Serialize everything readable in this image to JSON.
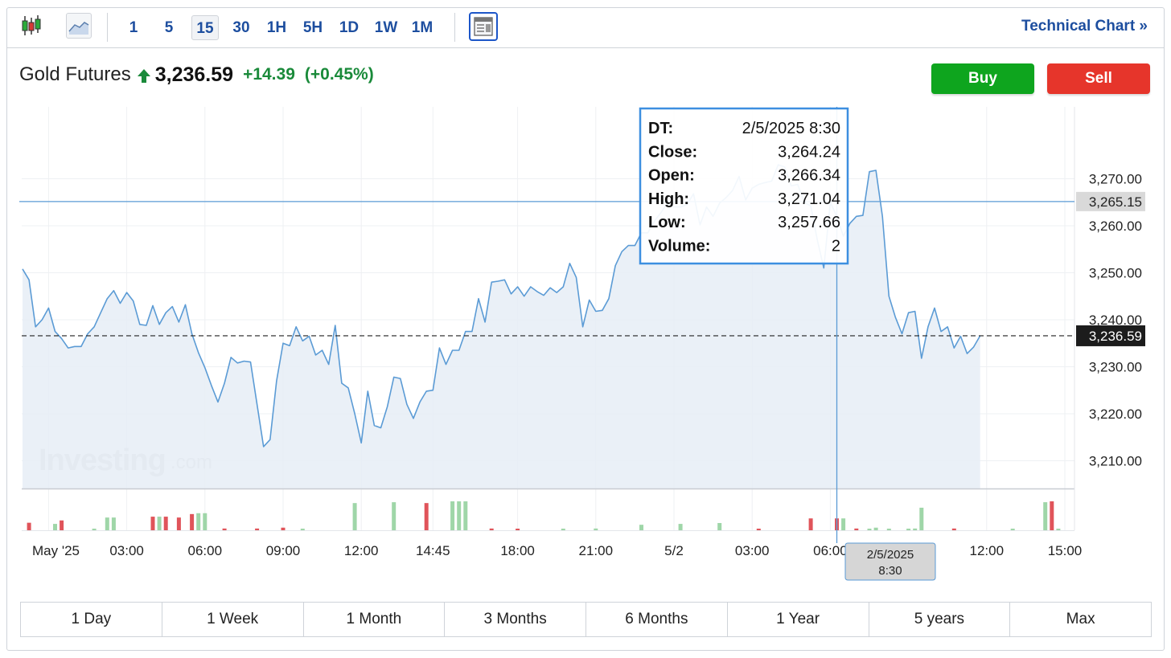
{
  "toolbar": {
    "icons": [
      "candlestick-icon",
      "area-chart-icon",
      "layout-icon"
    ],
    "timeframes": [
      "1",
      "5",
      "15",
      "30",
      "1H",
      "5H",
      "1D",
      "1W",
      "1M"
    ],
    "active_timeframe": "15",
    "technical_link": "Technical Chart »"
  },
  "instrument": {
    "name": "Gold Futures",
    "price": "3,236.59",
    "change": "+14.39",
    "change_pct": "(+0.45%)",
    "direction": "up"
  },
  "actions": {
    "buy": "Buy",
    "sell": "Sell"
  },
  "tooltip": {
    "rows": [
      {
        "label": "DT:",
        "value": "2/5/2025 8:30"
      },
      {
        "label": "Close:",
        "value": "3,264.24"
      },
      {
        "label": "Open:",
        "value": "3,266.34"
      },
      {
        "label": "High:",
        "value": "3,271.04"
      },
      {
        "label": "Low:",
        "value": "3,257.66"
      },
      {
        "label": "Volume:",
        "value": "2"
      }
    ]
  },
  "crosshair": {
    "price_label": "3,265.15",
    "time_label_line1": "2/5/2025",
    "time_label_line2": "8:30"
  },
  "last_price_label": "3,236.59",
  "watermark": {
    "brand": "Investing",
    "suffix": ".com"
  },
  "ranges": [
    "1 Day",
    "1 Week",
    "1 Month",
    "3 Months",
    "6 Months",
    "1 Year",
    "5 years",
    "Max"
  ],
  "colors": {
    "line": "#5b9bd5",
    "area": "#e6edf6",
    "up_volume": "#9fd6a8",
    "down_volume": "#e0545a",
    "positive": "#1a8a3a",
    "link": "#1d4e9f",
    "buy": "#0ea51e",
    "sell": "#e6352b"
  },
  "chart_data": {
    "type": "area",
    "y_ticks": [
      "3,270.00",
      "3,260.00",
      "3,250.00",
      "3,240.00",
      "3,230.00",
      "3,220.00",
      "3,210.00"
    ],
    "y_tick_values": [
      3270,
      3260,
      3250,
      3240,
      3230,
      3220,
      3210
    ],
    "ylim": [
      3204.1,
      3285.3
    ],
    "x_ticks": [
      "May '25",
      "03:00",
      "06:00",
      "09:00",
      "12:00",
      "14:45",
      "18:00",
      "21:00",
      "5/2",
      "03:00",
      "06:00",
      "12:00",
      "15:00"
    ],
    "x_tick_index": [
      4,
      16,
      28,
      40,
      52,
      63,
      76,
      88,
      100,
      112,
      124,
      148,
      160
    ],
    "close_values": [
      3250.8,
      3248.5,
      3238.5,
      3240.0,
      3242.5,
      3237.5,
      3236.0,
      3234.0,
      3234.3,
      3234.3,
      3237.0,
      3238.5,
      3241.5,
      3244.5,
      3246.2,
      3243.5,
      3245.8,
      3244.0,
      3239.0,
      3238.8,
      3243.0,
      3239.0,
      3241.5,
      3242.8,
      3239.5,
      3243.2,
      3237.0,
      3233.0,
      3229.8,
      3226.0,
      3222.5,
      3226.5,
      3232.0,
      3230.8,
      3231.2,
      3231.0,
      3222.0,
      3213.0,
      3214.5,
      3227.0,
      3235.0,
      3234.5,
      3238.5,
      3235.5,
      3236.5,
      3232.5,
      3233.5,
      3230.5,
      3238.8,
      3226.5,
      3225.5,
      3220.0,
      3213.8,
      3224.8,
      3217.5,
      3217.0,
      3221.5,
      3227.8,
      3227.5,
      3222.0,
      3219.0,
      3222.5,
      3224.8,
      3225.0,
      3234.0,
      3230.5,
      3233.5,
      3233.5,
      3237.5,
      3237.5,
      3244.5,
      3239.5,
      3248.0,
      3248.2,
      3248.5,
      3245.5,
      3247.0,
      3245.0,
      3247.0,
      3246.0,
      3245.2,
      3246.8,
      3245.8,
      3247.0,
      3252.0,
      3249.0,
      3238.5,
      3244.2,
      3241.8,
      3242.0,
      3244.5,
      3251.5,
      3254.5,
      3255.8,
      3255.8,
      3258.5,
      3258.5,
      3261.0,
      3262.8,
      3264.8,
      3264.0,
      3264.0,
      3264.5,
      3266.8,
      3260.2,
      3264.0,
      3262.0,
      3264.8,
      3266.0,
      3267.5,
      3270.5,
      3265.5,
      3268.0,
      3268.8,
      3269.2,
      3269.5,
      3273.0,
      3272.5,
      3268.5,
      3268.8,
      3265.0,
      3264.2,
      3257.0,
      3251.0,
      3265.0,
      3262.0,
      3257.8,
      3260.5,
      3262.0,
      3262.2,
      3271.5,
      3271.8,
      3262.0,
      3245.0,
      3240.5,
      3237.0,
      3241.5,
      3241.8,
      3231.8,
      3238.5,
      3242.5,
      3237.5,
      3238.5,
      3234.0,
      3236.5,
      3232.8,
      3234.2,
      3236.59
    ],
    "volume_bars": [
      {
        "i": 1,
        "v": 0.26,
        "dir": "down"
      },
      {
        "i": 5,
        "v": 0.22,
        "dir": "up"
      },
      {
        "i": 6,
        "v": 0.34,
        "dir": "down"
      },
      {
        "i": 11,
        "v": 0.03,
        "dir": "up"
      },
      {
        "i": 13,
        "v": 0.44,
        "dir": "up"
      },
      {
        "i": 14,
        "v": 0.44,
        "dir": "up"
      },
      {
        "i": 20,
        "v": 0.47,
        "dir": "down"
      },
      {
        "i": 21,
        "v": 0.47,
        "dir": "up"
      },
      {
        "i": 22,
        "v": 0.47,
        "dir": "down"
      },
      {
        "i": 24,
        "v": 0.44,
        "dir": "down"
      },
      {
        "i": 26,
        "v": 0.56,
        "dir": "down"
      },
      {
        "i": 27,
        "v": 0.59,
        "dir": "up"
      },
      {
        "i": 28,
        "v": 0.59,
        "dir": "up"
      },
      {
        "i": 31,
        "v": 0.06,
        "dir": "down"
      },
      {
        "i": 36,
        "v": 0.06,
        "dir": "down"
      },
      {
        "i": 40,
        "v": 0.09,
        "dir": "down"
      },
      {
        "i": 43,
        "v": 0.03,
        "dir": "up"
      },
      {
        "i": 51,
        "v": 0.94,
        "dir": "up"
      },
      {
        "i": 57,
        "v": 0.97,
        "dir": "up"
      },
      {
        "i": 62,
        "v": 0.94,
        "dir": "down"
      },
      {
        "i": 66,
        "v": 1.0,
        "dir": "up"
      },
      {
        "i": 67,
        "v": 1.0,
        "dir": "up"
      },
      {
        "i": 68,
        "v": 1.0,
        "dir": "up"
      },
      {
        "i": 72,
        "v": 0.06,
        "dir": "down"
      },
      {
        "i": 76,
        "v": 0.03,
        "dir": "down"
      },
      {
        "i": 83,
        "v": 0.03,
        "dir": "up"
      },
      {
        "i": 88,
        "v": 0.06,
        "dir": "up"
      },
      {
        "i": 95,
        "v": 0.19,
        "dir": "up"
      },
      {
        "i": 101,
        "v": 0.22,
        "dir": "up"
      },
      {
        "i": 107,
        "v": 0.25,
        "dir": "up"
      },
      {
        "i": 113,
        "v": 0.03,
        "dir": "down"
      },
      {
        "i": 121,
        "v": 0.41,
        "dir": "down"
      },
      {
        "i": 125,
        "v": 0.41,
        "dir": "down"
      },
      {
        "i": 126,
        "v": 0.41,
        "dir": "up"
      },
      {
        "i": 128,
        "v": 0.06,
        "dir": "down"
      },
      {
        "i": 130,
        "v": 0.03,
        "dir": "up"
      },
      {
        "i": 131,
        "v": 0.09,
        "dir": "up"
      },
      {
        "i": 133,
        "v": 0.03,
        "dir": "up"
      },
      {
        "i": 136,
        "v": 0.03,
        "dir": "up"
      },
      {
        "i": 137,
        "v": 0.06,
        "dir": "up"
      },
      {
        "i": 138,
        "v": 0.78,
        "dir": "up"
      },
      {
        "i": 143,
        "v": 0.06,
        "dir": "down"
      },
      {
        "i": 152,
        "v": 0.03,
        "dir": "up"
      },
      {
        "i": 157,
        "v": 0.97,
        "dir": "up"
      },
      {
        "i": 158,
        "v": 1.0,
        "dir": "down"
      },
      {
        "i": 159,
        "v": 0.03,
        "dir": "up"
      }
    ],
    "crosshair_index": 125,
    "crosshair_value": 3265.15,
    "last_value": 3236.59,
    "grid": true,
    "legend": "none"
  }
}
